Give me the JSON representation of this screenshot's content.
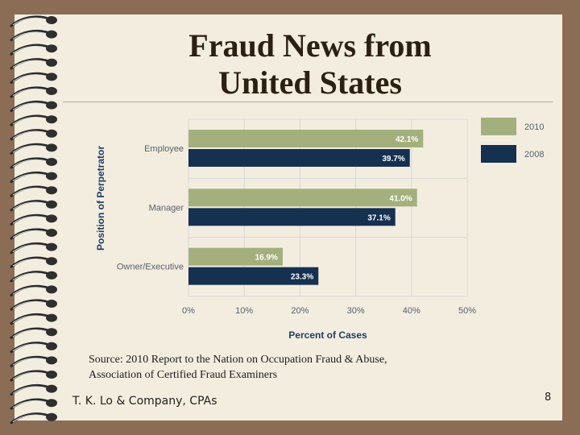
{
  "slide": {
    "title_line1": "Fraud News from",
    "title_line2": "United States",
    "source_line1": "Source: 2010 Report to the Nation on Occupation Fraud & Abuse,",
    "source_line2": "Association of Certified Fraud Examiners",
    "company": "T. K. Lo & Company, CPAs",
    "page_number": "8"
  },
  "colors": {
    "background": "#8b6d56",
    "slide": "#f3ede0",
    "series_2010": "#a3b07d",
    "series_2008": "#16304f",
    "axis_text": "#555f6b",
    "axis_title": "#1f3d63"
  },
  "chart_data": {
    "type": "bar",
    "orientation": "horizontal",
    "categories": [
      "Employee",
      "Manager",
      "Owner/Executive"
    ],
    "series": [
      {
        "name": "2010",
        "values": [
          42.1,
          41.0,
          16.9
        ],
        "labels": [
          "42.1%",
          "41.0%",
          "16.9%"
        ]
      },
      {
        "name": "2008",
        "values": [
          39.7,
          37.1,
          23.3
        ],
        "labels": [
          "39.7%",
          "37.1%",
          "23.3%"
        ]
      }
    ],
    "xlabel": "Percent of Cases",
    "ylabel": "Position of Perpetrator",
    "xlim": [
      0,
      50
    ],
    "xticks": [
      "0%",
      "10%",
      "20%",
      "30%",
      "40%",
      "50%"
    ],
    "grid": true,
    "legend_position": "top-right"
  }
}
